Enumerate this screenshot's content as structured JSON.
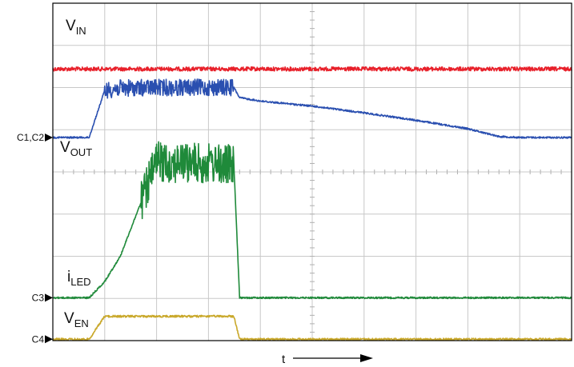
{
  "chart_data": {
    "type": "line",
    "title": "",
    "xlabel": "t",
    "ylabel": "",
    "grid": true,
    "channel_markers": [
      {
        "label": "C1,C2",
        "level": 0.398
      },
      {
        "label": "C3",
        "level": 0.873
      },
      {
        "label": "C4",
        "level": 0.996
      }
    ],
    "trace_labels": [
      {
        "main": "V",
        "sub": "IN"
      },
      {
        "main": "V",
        "sub": "OUT"
      },
      {
        "main": "i",
        "sub": "LED"
      },
      {
        "main": "V",
        "sub": "EN"
      }
    ],
    "x": [
      0,
      0.7,
      1.0,
      1.3,
      2.0,
      3.0,
      3.49,
      3.6,
      4.0,
      5.0,
      6.0,
      7.0,
      8.0,
      8.6,
      9.0,
      9.3,
      10.0
    ],
    "series": [
      {
        "id": "vin",
        "color": "#e8202a",
        "y": [
          0.195,
          0.195,
          0.195,
          0.195,
          0.195,
          0.195,
          0.195,
          0.195,
          0.195,
          0.195,
          0.195,
          0.195,
          0.195,
          0.195,
          0.195,
          0.195,
          0.195
        ],
        "ripple": 0.006,
        "ripple_x": [
          0,
          10
        ]
      },
      {
        "id": "vout",
        "color": "#2a4fb0",
        "y": [
          0.398,
          0.398,
          0.258,
          0.252,
          0.25,
          0.25,
          0.25,
          0.28,
          0.29,
          0.305,
          0.325,
          0.347,
          0.372,
          0.395,
          0.398,
          0.398,
          0.398
        ],
        "ripple": 0.025,
        "ripple_x": [
          1.0,
          3.49
        ]
      },
      {
        "id": "iled",
        "color": "#1f8a3a",
        "y": [
          0.873,
          0.873,
          0.825,
          0.75,
          0.47,
          0.475,
          0.48,
          0.873,
          0.873,
          0.873,
          0.873,
          0.873,
          0.873,
          0.873,
          0.873,
          0.873,
          0.873
        ],
        "ripple": 0.06,
        "ripple_x": [
          1.7,
          3.49
        ]
      },
      {
        "id": "ven",
        "color": "#c9a82a",
        "y": [
          0.996,
          0.996,
          0.928,
          0.928,
          0.928,
          0.928,
          0.928,
          0.996,
          0.996,
          0.996,
          0.996,
          0.996,
          0.996,
          0.996,
          0.996,
          0.996,
          0.996
        ],
        "ripple": 0.003,
        "ripple_x": [
          0,
          10
        ]
      }
    ]
  }
}
